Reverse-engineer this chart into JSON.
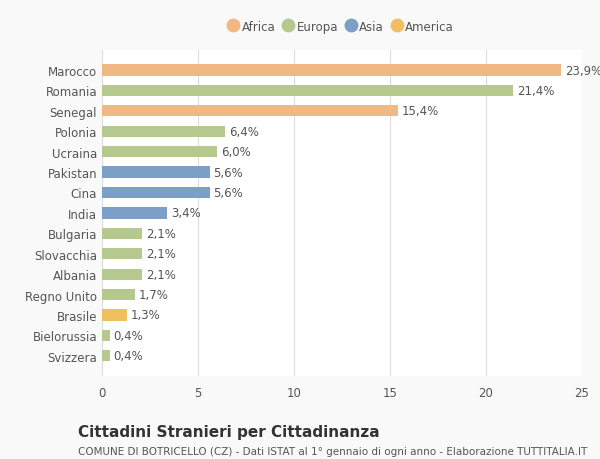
{
  "categories": [
    "Svizzera",
    "Bielorussia",
    "Brasile",
    "Regno Unito",
    "Albania",
    "Slovacchia",
    "Bulgaria",
    "India",
    "Cina",
    "Pakistan",
    "Ucraina",
    "Polonia",
    "Senegal",
    "Romania",
    "Marocco"
  ],
  "values": [
    0.4,
    0.4,
    1.3,
    1.7,
    2.1,
    2.1,
    2.1,
    3.4,
    5.6,
    5.6,
    6.0,
    6.4,
    15.4,
    21.4,
    23.9
  ],
  "colors": [
    "#b5c98e",
    "#b5c98e",
    "#f0c060",
    "#b5c98e",
    "#b5c98e",
    "#b5c98e",
    "#b5c98e",
    "#7b9fc7",
    "#7b9fc7",
    "#7b9fc7",
    "#b5c98e",
    "#b5c98e",
    "#f0b882",
    "#b5c98e",
    "#f0b882"
  ],
  "labels": [
    "0,4%",
    "0,4%",
    "1,3%",
    "1,7%",
    "2,1%",
    "2,1%",
    "2,1%",
    "3,4%",
    "5,6%",
    "5,6%",
    "6,0%",
    "6,4%",
    "15,4%",
    "21,4%",
    "23,9%"
  ],
  "legend_labels": [
    "Africa",
    "Europa",
    "Asia",
    "America"
  ],
  "legend_colors": [
    "#f0b882",
    "#b5c98e",
    "#7b9fc7",
    "#f0c060"
  ],
  "title": "Cittadini Stranieri per Cittadinanza",
  "subtitle": "COMUNE DI BOTRICELLO (CZ) - Dati ISTAT al 1° gennaio di ogni anno - Elaborazione TUTTITALIA.IT",
  "xlim": [
    0,
    25
  ],
  "xticks": [
    0,
    5,
    10,
    15,
    20,
    25
  ],
  "background_color": "#f9f9f9",
  "bar_background": "#ffffff",
  "grid_color": "#dddddd",
  "text_color": "#555555",
  "label_fontsize": 8.5,
  "title_fontsize": 11,
  "subtitle_fontsize": 7.5
}
